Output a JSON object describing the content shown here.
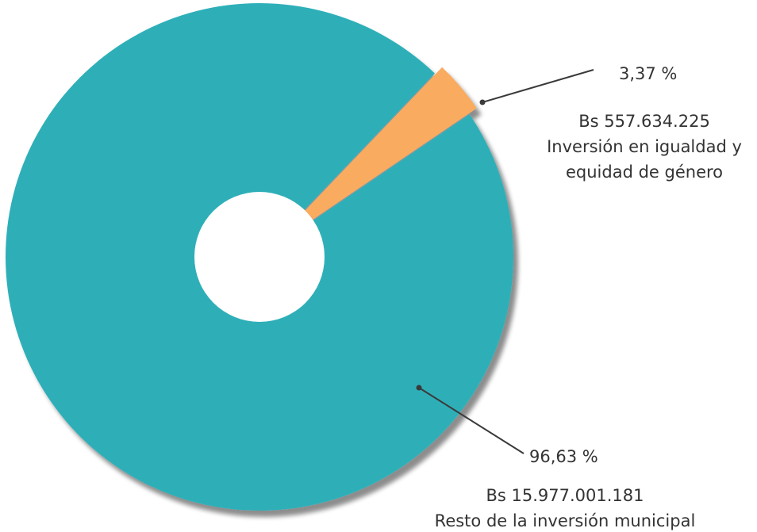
{
  "chart_data": {
    "type": "pie",
    "donut": true,
    "slices": [
      {
        "percent_label": "96,63 %",
        "value": 96.63,
        "amount_label": "Bs 15.977.001.181",
        "description_lines": [
          "Resto de la inversión municipal"
        ],
        "color": "#2eafb8"
      },
      {
        "percent_label": "3,37 %",
        "value": 3.37,
        "amount_label": "Bs 557.634.225",
        "description_lines": [
          "Inversión en igualdad y",
          "equidad de género"
        ],
        "color": "#f9ab5e"
      }
    ],
    "legend": "none"
  }
}
